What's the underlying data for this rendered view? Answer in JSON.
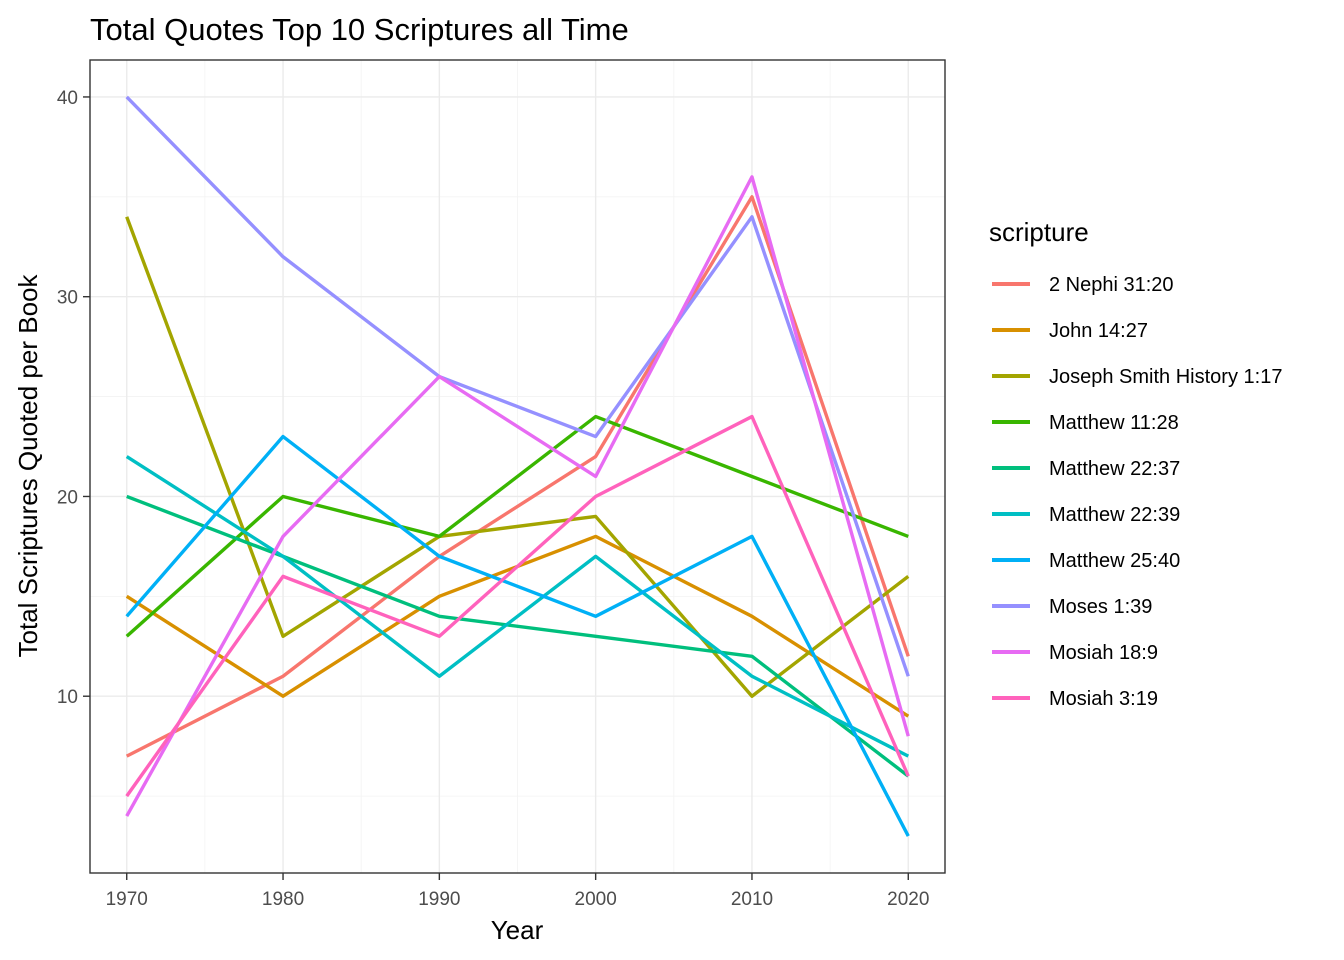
{
  "chart_data": {
    "type": "line",
    "title": "Total Quotes Top 10 Scriptures all Time",
    "xlabel": "Year",
    "ylabel": "Total Scriptures Quoted per Book",
    "x": [
      1970,
      1980,
      1990,
      2000,
      2010,
      2020
    ],
    "x_ticks": [
      "1970",
      "1980",
      "1990",
      "2000",
      "2010",
      "2020"
    ],
    "y_ticks": [
      "10",
      "20",
      "30",
      "40"
    ],
    "xlim": [
      1967.65,
      2022.35
    ],
    "ylim": [
      1.15,
      41.85
    ],
    "grid": true,
    "legend": {
      "title": "scripture",
      "placement": "right"
    },
    "series": [
      {
        "name": "2 Nephi 31:20",
        "color": "#F8766D",
        "values": [
          7,
          11,
          17,
          22,
          35,
          12
        ]
      },
      {
        "name": "John 14:27",
        "color": "#D89000",
        "values": [
          15,
          10,
          15,
          18,
          14,
          9
        ]
      },
      {
        "name": "Joseph Smith History 1:17",
        "color": "#A3A500",
        "values": [
          34,
          13,
          18,
          19,
          10,
          16
        ]
      },
      {
        "name": "Matthew 11:28",
        "color": "#39B600",
        "values": [
          13,
          20,
          18,
          24,
          21,
          18
        ]
      },
      {
        "name": "Matthew 22:37",
        "color": "#00BF7D",
        "values": [
          20,
          17,
          14,
          13,
          12,
          6
        ]
      },
      {
        "name": "Matthew 22:39",
        "color": "#00BFC4",
        "values": [
          22,
          17,
          11,
          17,
          11,
          7
        ]
      },
      {
        "name": "Matthew 25:40",
        "color": "#00B0F6",
        "values": [
          14,
          23,
          17,
          14,
          18,
          3
        ]
      },
      {
        "name": "Moses 1:39",
        "color": "#9590FF",
        "values": [
          40,
          32,
          26,
          23,
          34,
          11
        ]
      },
      {
        "name": "Mosiah 18:9",
        "color": "#E76BF3",
        "values": [
          4,
          18,
          26,
          21,
          36,
          8
        ]
      },
      {
        "name": "Mosiah 3:19",
        "color": "#FF62BC",
        "values": [
          5,
          16,
          13,
          20,
          24,
          6
        ]
      }
    ]
  }
}
